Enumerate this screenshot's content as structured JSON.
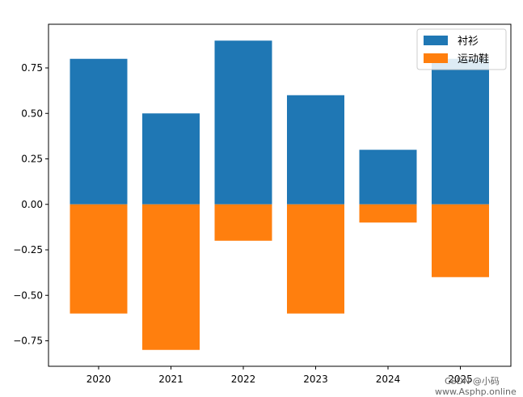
{
  "chart_data": {
    "type": "bar",
    "categories": [
      "2020",
      "2021",
      "2022",
      "2023",
      "2024",
      "2025"
    ],
    "series": [
      {
        "name": "衬衫",
        "values": [
          0.8,
          0.5,
          0.9,
          0.6,
          0.3,
          0.8
        ],
        "color": "#1f77b4"
      },
      {
        "name": "运动鞋",
        "values": [
          -0.6,
          -0.8,
          -0.2,
          -0.6,
          -0.1,
          -0.4
        ],
        "color": "#ff7f0e"
      }
    ],
    "yticks": [
      -0.75,
      -0.5,
      -0.25,
      0,
      0.25,
      0.5,
      0.75
    ],
    "ytick_labels": [
      "−0.75",
      "−0.50",
      "−0.25",
      "0.00",
      "0.25",
      "0.50",
      "0.75"
    ],
    "ylim": [
      -0.89,
      0.99
    ],
    "grid": false,
    "legend_position": "top-right",
    "title": "",
    "xlabel": "",
    "ylabel": ""
  },
  "watermark": {
    "line1": "CSDN @小码",
    "line2": "www.Asphp.online"
  }
}
